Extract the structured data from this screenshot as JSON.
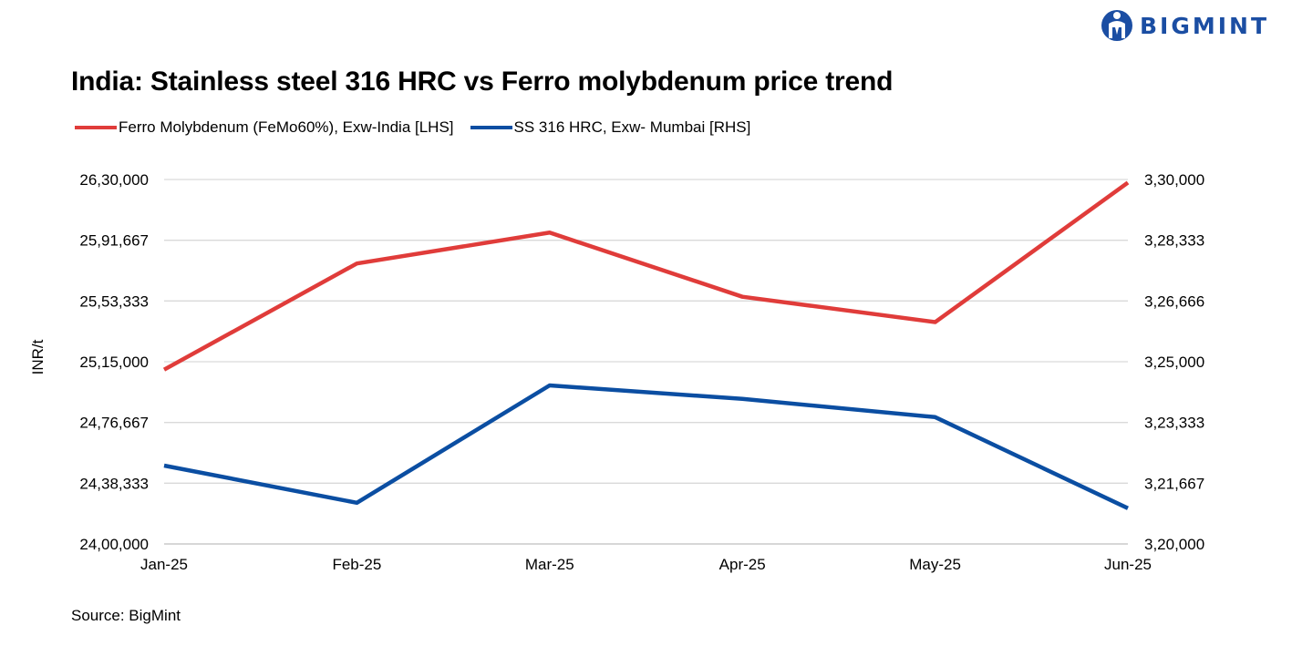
{
  "brand": {
    "logo_text": "BIGMINT"
  },
  "source": "Source: BigMint",
  "chart_data": {
    "type": "line",
    "title": "India: Stainless steel 316 HRC vs Ferro molybdenum price trend",
    "categories": [
      "Jan-25",
      "Feb-25",
      "Mar-25",
      "Apr-25",
      "May-25",
      "Jun-25"
    ],
    "left_axis": {
      "label": "INR/t",
      "ylim": [
        2400000,
        2630000
      ],
      "ticks": [
        2400000,
        2438333,
        2476667,
        2515000,
        2553333,
        2591667,
        2630000
      ],
      "tick_labels": [
        "24,00,000",
        "24,38,333",
        "24,76,667",
        "25,15,000",
        "25,53,333",
        "25,91,667",
        "26,30,000"
      ]
    },
    "right_axis": {
      "label": "",
      "ylim": [
        320000,
        330000
      ],
      "ticks": [
        320000,
        321667,
        323333,
        325000,
        326666,
        328333,
        330000
      ],
      "tick_labels": [
        "3,20,000",
        "3,21,667",
        "3,23,333",
        "3,25,000",
        "3,26,666",
        "3,28,333",
        "3,30,000"
      ]
    },
    "series": [
      {
        "name": "Ferro Molybdenum (FeMo60%), Exw-India [LHS]",
        "axis": "left",
        "color": "#e03c3a",
        "values": [
          2510000,
          2577000,
          2596500,
          2556000,
          2540000,
          2628000
        ]
      },
      {
        "name": "SS 316 HRC, Exw- Mumbai [RHS]",
        "axis": "right",
        "color": "#0b4ea2",
        "values": [
          322150,
          321130,
          324350,
          323980,
          323480,
          320980
        ]
      }
    ],
    "grid": true,
    "legend_position": "top-left"
  }
}
